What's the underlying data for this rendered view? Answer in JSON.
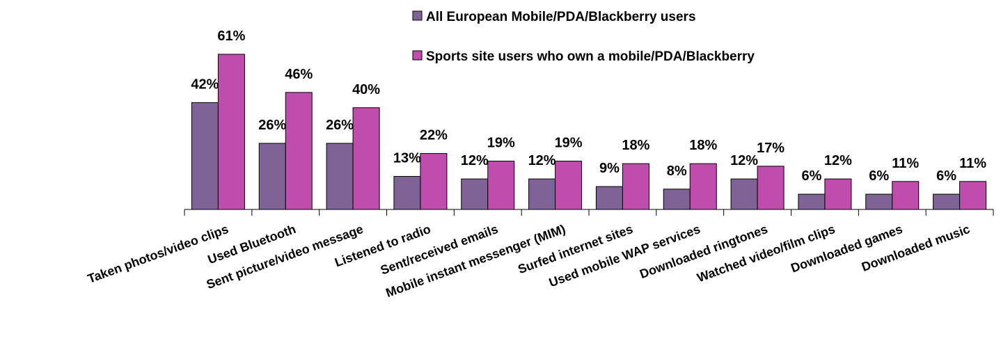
{
  "chart_data": {
    "type": "bar",
    "categories": [
      "Taken photos/video clips",
      "Used Bluetooth",
      "Sent picture/video message",
      "Listened to radio",
      "Sent/received emails",
      "Mobile instant messenger (MIM)",
      "Surfed internet sites",
      "Used mobile WAP services",
      "Downloaded ringtones",
      "Watched video/film clips",
      "Downloaded games",
      "Downloaded music"
    ],
    "series": [
      {
        "name": "All European Mobile/PDA/Blackberry users",
        "color": "#806396",
        "values": [
          42,
          26,
          26,
          13,
          12,
          12,
          9,
          8,
          12,
          6,
          6,
          6
        ],
        "value_labels": [
          "42%",
          "26%",
          "26%",
          "13%",
          "12%",
          "12%",
          "9%",
          "8%",
          "12%",
          "6%",
          "6%",
          "6%"
        ]
      },
      {
        "name": "Sports site users who own a mobile/PDA/Blackberry",
        "color": "#c04dae",
        "values": [
          61,
          46,
          40,
          22,
          19,
          19,
          18,
          18,
          17,
          12,
          11,
          11
        ],
        "value_labels": [
          "61%",
          "46%",
          "40%",
          "22%",
          "19%",
          "19%",
          "18%",
          "18%",
          "17%",
          "12%",
          "11%",
          "11%"
        ]
      }
    ],
    "legend": "top"
  }
}
